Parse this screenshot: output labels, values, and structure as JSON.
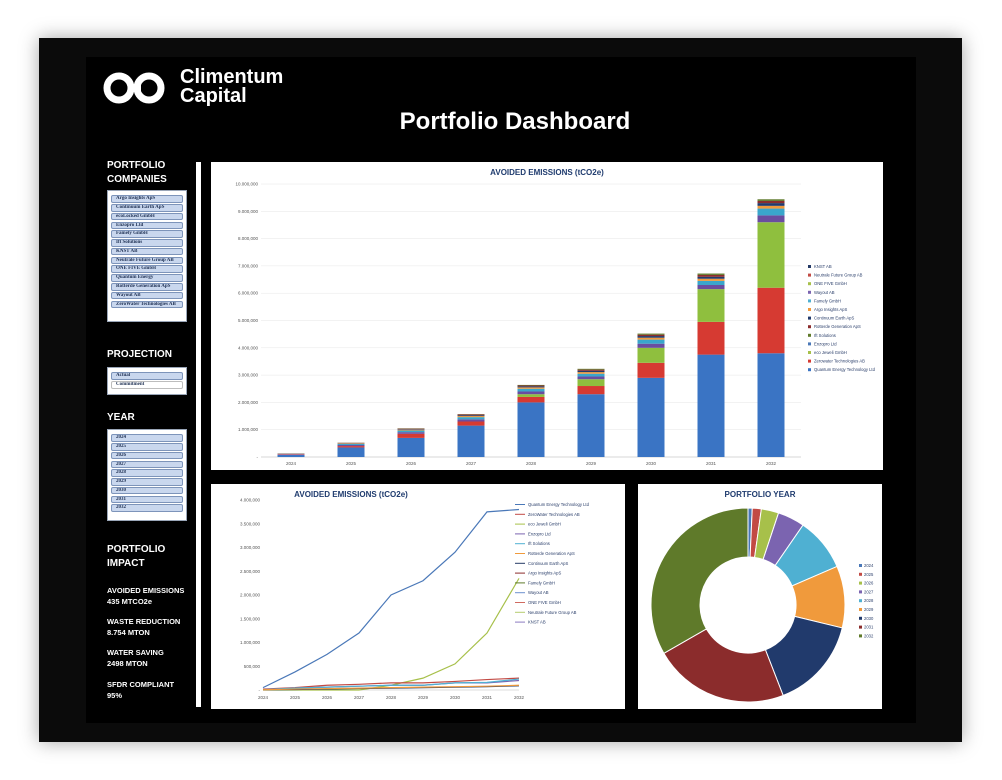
{
  "brand": {
    "name_line1": "Climentum",
    "name_line2": "Capital"
  },
  "page_title": "Portfolio Dashboard",
  "sidebar": {
    "companies_heading_1": "PORTFOLIO",
    "companies_heading_2": "COMPANIES",
    "companies": [
      "Argo Insights ApS",
      "Continuum Earth ApS",
      "ecoLocked GmbH",
      "Enzopro Ltd",
      "Famely GmbH",
      "Ift Solutions",
      "KNST AB",
      "Neutrale Future Group AB",
      "ONE FIVE GmbH",
      "Quantum Energy",
      "Rotterde Generation ApS",
      "Wayout AB",
      "ZeroWater Technologies AB"
    ],
    "projection_heading": "PROJECTION",
    "projection_options": [
      "Actual",
      "Commitment"
    ],
    "year_heading": "YEAR",
    "years": [
      "2024",
      "2025",
      "2026",
      "2027",
      "2028",
      "2029",
      "2030",
      "2031",
      "2032"
    ],
    "impact_heading_1": "PORTFOLIO",
    "impact_heading_2": "IMPACT",
    "impact": [
      {
        "label": "AVOIDED EMISSIONS",
        "value": "435 MTCO2e"
      },
      {
        "label": "WASTE REDUCTION",
        "value": "8.754 MTON"
      },
      {
        "label": "WATER SAVING",
        "value": "2498 MTON"
      },
      {
        "label": "SFDR COMPLIANT",
        "value": "95%"
      }
    ]
  },
  "chart_data": [
    {
      "type": "bar",
      "stacked": true,
      "title": "AVOIDED EMISSIONS (tCO2e)",
      "categories": [
        "2024",
        "2025",
        "2026",
        "2027",
        "2028",
        "2029",
        "2030",
        "2031",
        "2032"
      ],
      "ylim": [
        0,
        10000
      ],
      "y_ticks": [
        "-",
        "1.000,000",
        "2.000,000",
        "3.000,000",
        "4.000,000",
        "5.000,000",
        "6.000,000",
        "7.000,000",
        "8.000,000",
        "9.000,000",
        "10.000,000"
      ],
      "legend_position": "right",
      "series": [
        {
          "name": "Quantum Energy Technology Ltd",
          "color": "#3a74c4",
          "values": [
            80,
            350,
            700,
            1150,
            2000,
            2300,
            2900,
            3750,
            3800
          ]
        },
        {
          "name": "Zerowater Technologies AB",
          "color": "#d63a32",
          "values": [
            20,
            50,
            150,
            150,
            200,
            300,
            550,
            1200,
            2400
          ]
        },
        {
          "name": "eco Jeweli GmbH",
          "color": "#8fbf3e",
          "values": [
            0,
            0,
            0,
            0,
            100,
            250,
            550,
            1200,
            2400
          ]
        },
        {
          "name": "Enzopro Ltd",
          "color": "#6a4da0",
          "values": [
            10,
            40,
            60,
            80,
            100,
            100,
            150,
            150,
            250
          ]
        },
        {
          "name": "Ift Solutions",
          "color": "#3aa6cc",
          "values": [
            5,
            40,
            60,
            80,
            100,
            100,
            150,
            150,
            250
          ]
        },
        {
          "name": "Rotterde Generation ApS",
          "color": "#f09a3c",
          "values": [
            5,
            20,
            30,
            40,
            50,
            60,
            70,
            80,
            100
          ]
        },
        {
          "name": "Continuum Earth ApS",
          "color": "#213a6c",
          "values": [
            5,
            10,
            20,
            30,
            40,
            50,
            60,
            70,
            100
          ]
        },
        {
          "name": "Argo Insights ApS",
          "color": "#8b2c2c",
          "values": [
            5,
            10,
            20,
            30,
            30,
            40,
            50,
            70,
            80
          ]
        },
        {
          "name": "Famely GmbH",
          "color": "#5f7a2a",
          "values": [
            3,
            5,
            10,
            10,
            20,
            30,
            40,
            50,
            60
          ]
        }
      ],
      "legend": [
        "KNST AB",
        "Neutrale Future Group AB",
        "ONE FIVE GmbH",
        "Wayout AB",
        "Famely GmbH",
        "Argo Insights ApS",
        "Continuum Earth ApS",
        "Rotterde Generation ApS",
        "Ift Solutions",
        "Enzopro Ltd",
        "eco Jeweli GmbH",
        "Zerowater Technologies AB",
        "Quantum Energy Technology Ltd"
      ]
    },
    {
      "type": "line",
      "title": "AVOIDED EMISSIONS (tCO2e)",
      "x": [
        "2024",
        "2025",
        "2026",
        "2027",
        "2028",
        "2029",
        "2030",
        "2031",
        "2032"
      ],
      "ylim": [
        0,
        4000
      ],
      "y_ticks": [
        "-",
        "500,000",
        "1.000,000",
        "1.500,000",
        "2.000,000",
        "2.500,000",
        "3.000,000",
        "3.500,000",
        "4.000,000"
      ],
      "legend_position": "right",
      "series": [
        {
          "name": "Quantum Energy Technology Ltd",
          "color": "#4a78b8",
          "values": [
            50,
            380,
            750,
            1200,
            2000,
            2300,
            2900,
            3750,
            3800
          ]
        },
        {
          "name": "eco Jeweli GmbH",
          "color": "#a7c04a",
          "values": [
            0,
            0,
            0,
            0,
            100,
            250,
            550,
            1200,
            2350
          ]
        },
        {
          "name": "Zerowater Technologies AB",
          "color": "#c24a44",
          "values": [
            20,
            50,
            100,
            120,
            150,
            150,
            180,
            220,
            250
          ]
        },
        {
          "name": "Enzopro Ltd",
          "color": "#7b64b0",
          "values": [
            10,
            40,
            60,
            80,
            100,
            100,
            150,
            150,
            200
          ]
        },
        {
          "name": "Ift Solutions",
          "color": "#4fb0d2",
          "values": [
            5,
            40,
            60,
            80,
            100,
            100,
            150,
            160,
            230
          ]
        },
        {
          "name": "Continuum Earth ApS",
          "color": "#243a66",
          "values": [
            5,
            10,
            20,
            30,
            40,
            50,
            60,
            70,
            90
          ]
        },
        {
          "name": "Rotterde Generation ApS",
          "color": "#f09a3c",
          "values": [
            5,
            20,
            30,
            40,
            50,
            60,
            70,
            80,
            100
          ]
        }
      ],
      "legend": [
        "Quantum Energy Technology Ltd",
        "ZeroWater Technologies AB",
        "eco Jeweli GmbH",
        "Enzopro Ltd",
        "Ift Solutions",
        "Rotterde Generation ApS",
        "Continuum Earth ApS",
        "Argo Insights ApS",
        "Famely GmbH",
        "Wayout AB",
        "ONE FIVE GmbH",
        "Neutrale Future Group AB",
        "KNST AB"
      ]
    },
    {
      "type": "pie",
      "donut": true,
      "title": "PORTFOLIO YEAR",
      "legend_position": "right",
      "slices": [
        {
          "label": "2024",
          "value": 0.7,
          "color": "#4a78b8"
        },
        {
          "label": "2025",
          "value": 1.5,
          "color": "#c24a44"
        },
        {
          "label": "2026",
          "value": 2.9,
          "color": "#a7c04a"
        },
        {
          "label": "2027",
          "value": 4.5,
          "color": "#7b64b0"
        },
        {
          "label": "2028",
          "value": 8.9,
          "color": "#4fb0d2"
        },
        {
          "label": "2029",
          "value": 10.3,
          "color": "#f09a3c"
        },
        {
          "label": "2030",
          "value": 15.3,
          "color": "#213a6c"
        },
        {
          "label": "2031",
          "value": 22.6,
          "color": "#8b2c2c"
        },
        {
          "label": "2032",
          "value": 33.3,
          "color": "#5f7a2a"
        }
      ]
    }
  ]
}
